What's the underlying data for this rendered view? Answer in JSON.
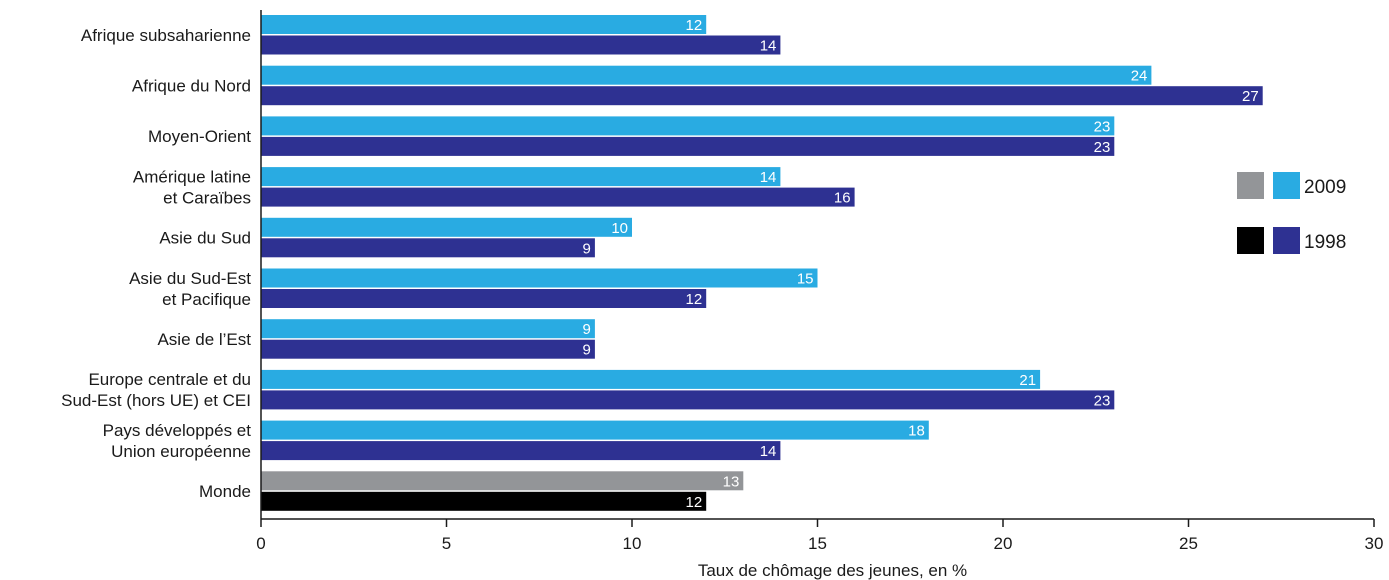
{
  "chart_data": {
    "type": "bar",
    "orientation": "horizontal",
    "xlabel": "Taux de chômage des jeunes, en %",
    "xlim": [
      0,
      30
    ],
    "xticks": [
      0,
      5,
      10,
      15,
      20,
      25,
      30
    ],
    "grid": false,
    "legend_position": "right",
    "categories": [
      [
        "Afrique subsaharienne"
      ],
      [
        "Afrique du Nord"
      ],
      [
        "Moyen-Orient"
      ],
      [
        "Amérique latine",
        "et Caraïbes"
      ],
      [
        "Asie du Sud"
      ],
      [
        "Asie du Sud-Est",
        "et Pacifique"
      ],
      [
        "Asie de l’Est"
      ],
      [
        "Europe centrale et du",
        "Sud-Est (hors UE) et CEI"
      ],
      [
        "Pays développés et",
        "Union européenne"
      ],
      [
        "Monde"
      ]
    ],
    "series": [
      {
        "name": "2009",
        "values": [
          12,
          24,
          23,
          14,
          10,
          15,
          9,
          21,
          18,
          13
        ],
        "color": "#29abe2",
        "world_color": "#939598"
      },
      {
        "name": "1998",
        "values": [
          14,
          27,
          23,
          16,
          9,
          12,
          9,
          23,
          14,
          12
        ],
        "color": "#2e3192",
        "world_color": "#000000"
      }
    ]
  }
}
